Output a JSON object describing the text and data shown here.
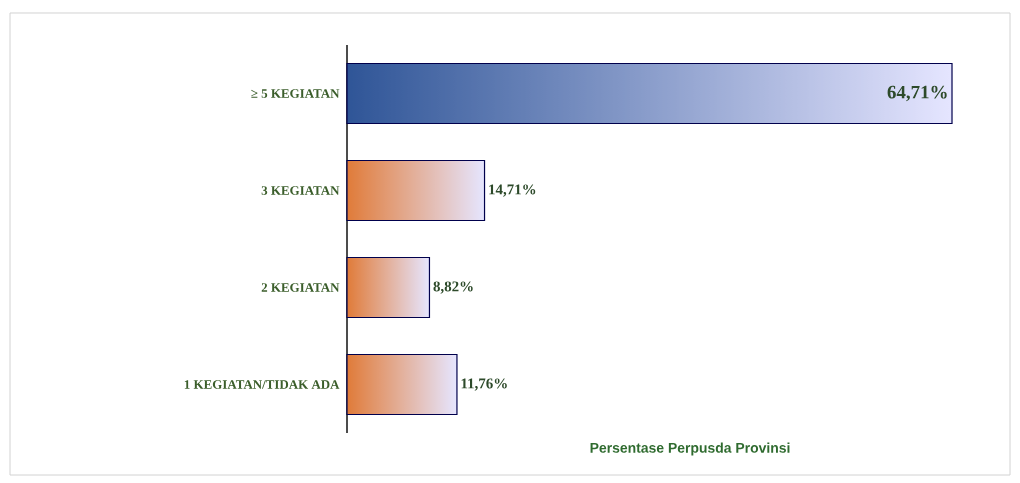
{
  "chart_data": {
    "type": "bar",
    "orientation": "horizontal",
    "xlabel": "Persentase Perpusda Provinsi",
    "categories": [
      "≥ 5 KEGIATAN",
      "3 KEGIATAN",
      "2 KEGIATAN",
      "1 KEGIATAN/TIDAK ADA"
    ],
    "values": [
      64.71,
      14.71,
      8.82,
      11.76
    ],
    "colors": [
      "#2f5597",
      "#e07b39",
      "#e07b39",
      "#e07b39"
    ],
    "value_labels": [
      "64,71%",
      "14,71%",
      "8,82%",
      "11,76%"
    ]
  }
}
